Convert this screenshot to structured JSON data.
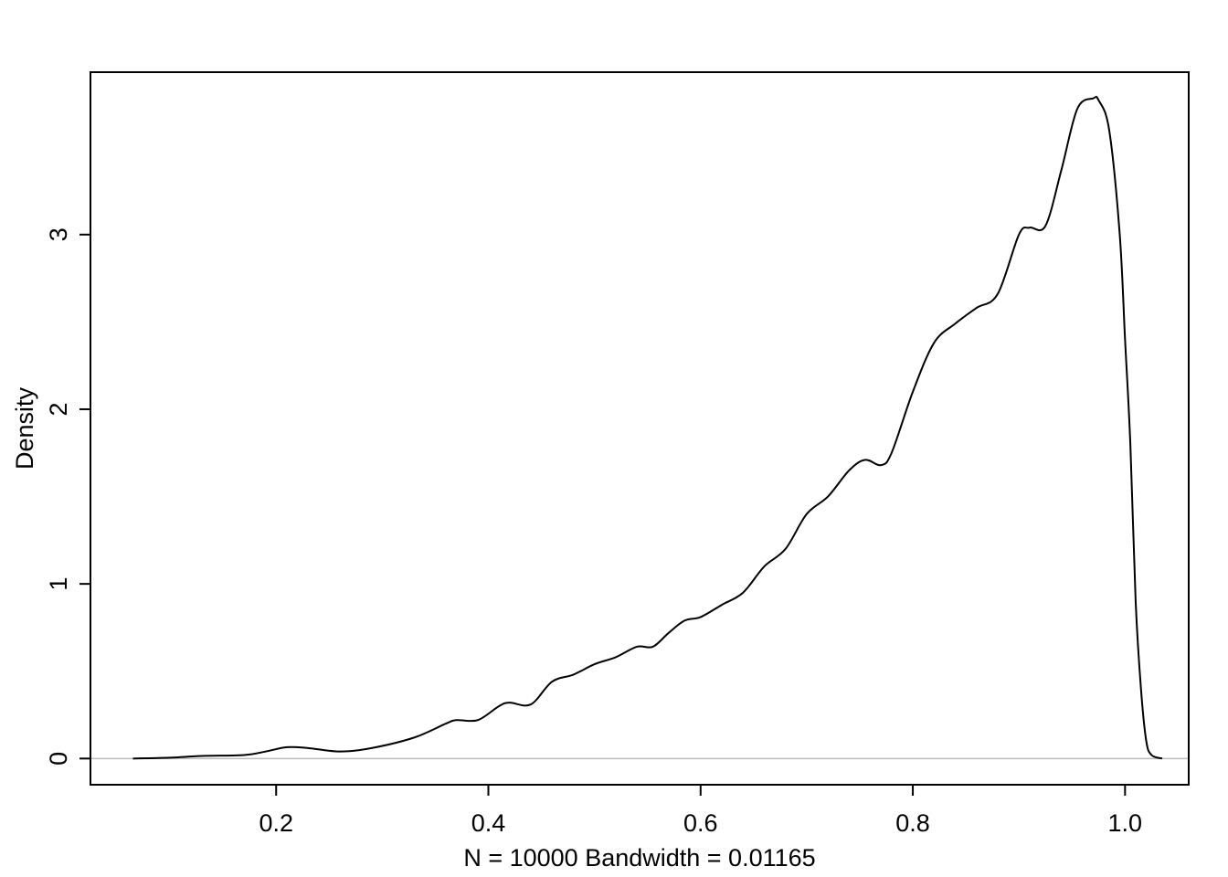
{
  "chart_data": {
    "type": "line",
    "title": "",
    "xlabel": "N = 10000   Bandwidth = 0.01165",
    "ylabel": "Density",
    "xlim": [
      0.025,
      1.06
    ],
    "ylim": [
      -0.15,
      3.93
    ],
    "x_ticks": [
      0.2,
      0.4,
      0.6,
      0.8,
      1.0
    ],
    "x_tick_labels": [
      "0.2",
      "0.4",
      "0.6",
      "0.8",
      "1.0"
    ],
    "y_ticks": [
      0,
      1,
      2,
      3
    ],
    "y_tick_labels": [
      "0",
      "1",
      "2",
      "3"
    ],
    "grid": false,
    "baseline": 0,
    "series": [
      {
        "x": [
          0.065,
          0.1,
          0.13,
          0.17,
          0.19,
          0.21,
          0.23,
          0.26,
          0.29,
          0.33,
          0.36,
          0.37,
          0.39,
          0.41,
          0.42,
          0.44,
          0.46,
          0.48,
          0.5,
          0.52,
          0.54,
          0.555,
          0.57,
          0.585,
          0.6,
          0.62,
          0.64,
          0.66,
          0.68,
          0.7,
          0.72,
          0.74,
          0.755,
          0.77,
          0.78,
          0.8,
          0.82,
          0.84,
          0.86,
          0.88,
          0.9,
          0.91,
          0.925,
          0.94,
          0.955,
          0.97,
          0.975,
          0.985,
          0.995,
          1.0,
          1.005,
          1.01,
          1.015,
          1.02,
          1.025,
          1.035
        ],
        "y": [
          0.0,
          0.005,
          0.015,
          0.02,
          0.04,
          0.065,
          0.06,
          0.04,
          0.06,
          0.12,
          0.2,
          0.22,
          0.22,
          0.3,
          0.32,
          0.31,
          0.44,
          0.48,
          0.54,
          0.58,
          0.64,
          0.64,
          0.72,
          0.79,
          0.81,
          0.88,
          0.95,
          1.1,
          1.2,
          1.4,
          1.5,
          1.65,
          1.71,
          1.68,
          1.75,
          2.1,
          2.38,
          2.49,
          2.58,
          2.66,
          3.0,
          3.04,
          3.05,
          3.37,
          3.72,
          3.78,
          3.77,
          3.6,
          3.0,
          2.4,
          1.8,
          0.9,
          0.4,
          0.1,
          0.02,
          0.0
        ]
      }
    ]
  }
}
